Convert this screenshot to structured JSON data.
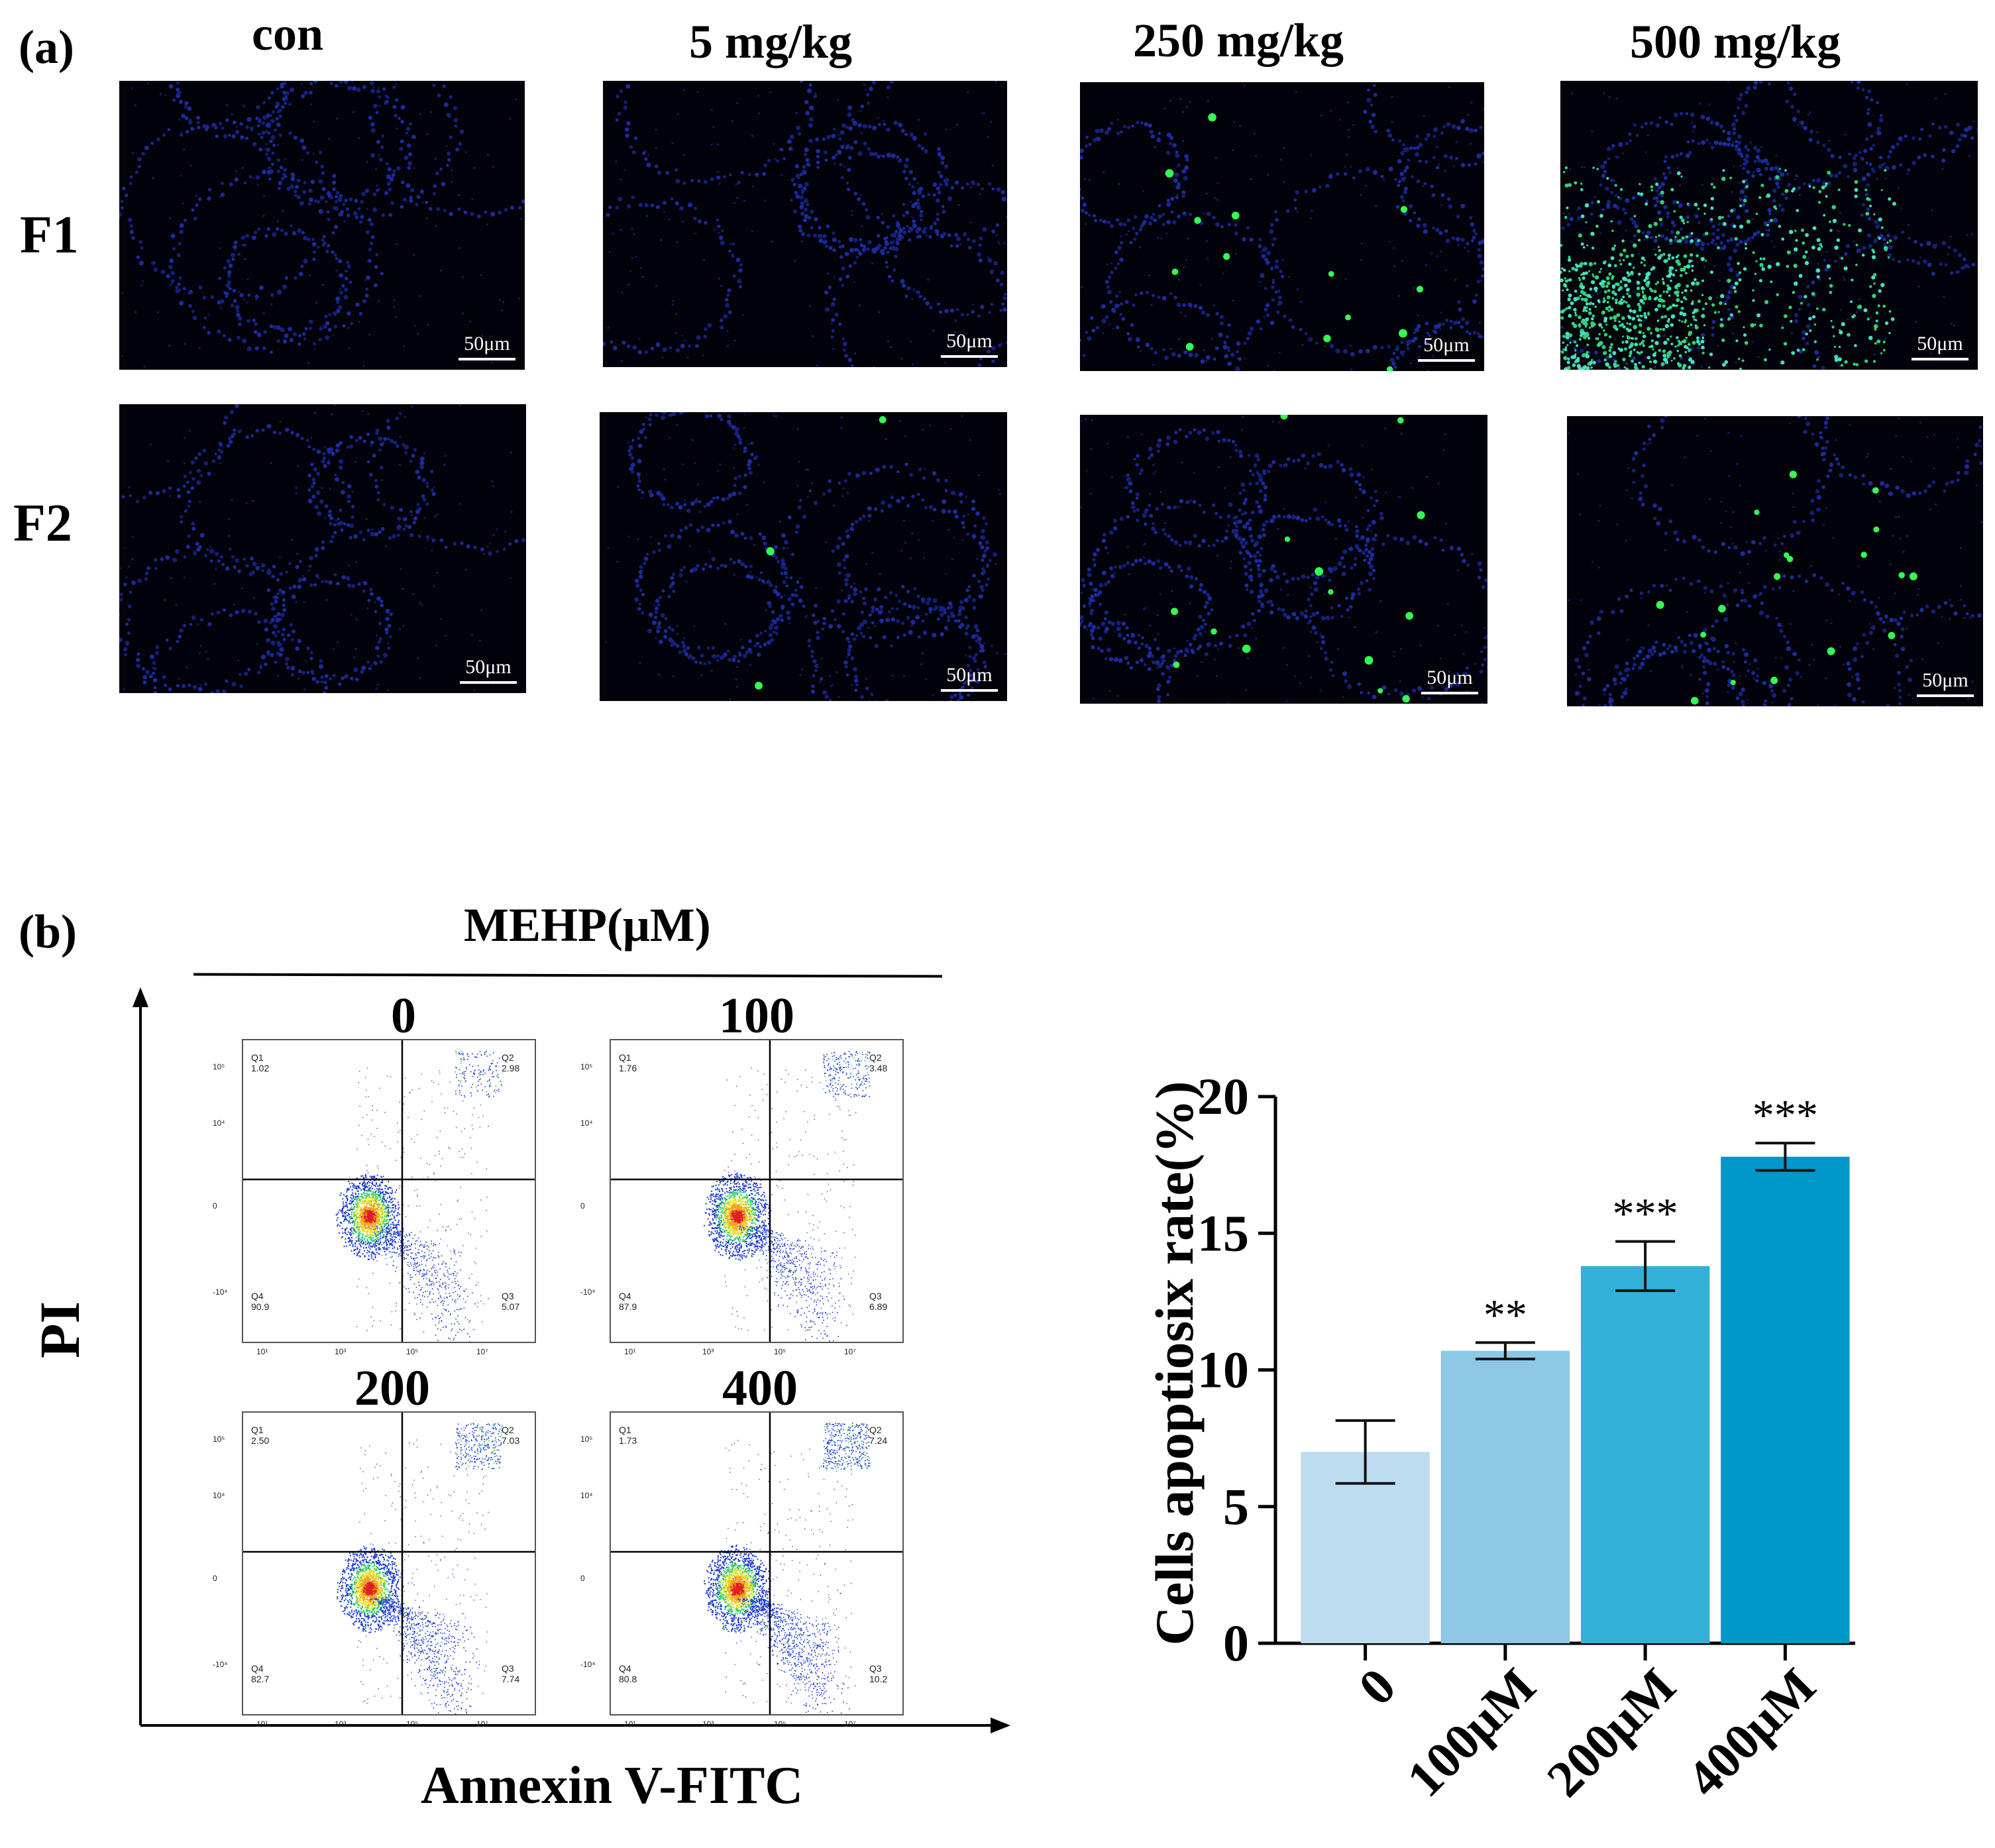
{
  "panel_a": {
    "label": "(a)",
    "column_headers": [
      "con",
      "5 mg/kg",
      "250 mg/kg",
      "500 mg/kg"
    ],
    "row_labels": [
      "F1",
      "F2"
    ],
    "scale_bar": "50μm"
  },
  "panel_b": {
    "label": "(b)",
    "treatment_title": "MEHP(μM)",
    "y_axis_label": "PI",
    "x_axis_label": "Annexin V-FITC",
    "plots": [
      {
        "title": "0",
        "q1": "1.02",
        "q2": "2.98",
        "q3": "5.07",
        "q4": "90.9"
      },
      {
        "title": "100",
        "q1": "1.76",
        "q2": "3.48",
        "q3": "6.89",
        "q4": "87.9"
      },
      {
        "title": "200",
        "q1": "2.50",
        "q2": "7.03",
        "q3": "7.74",
        "q4": "82.7"
      },
      {
        "title": "400",
        "q1": "1.73",
        "q2": "7.24",
        "q3": "10.2",
        "q4": "80.8"
      }
    ],
    "quadrant_names": {
      "q1": "Q1",
      "q2": "Q2",
      "q3": "Q3",
      "q4": "Q4"
    },
    "y_ticks": [
      "10⁵",
      "10⁴",
      "0",
      "-10⁴"
    ],
    "x_ticks": [
      "10¹",
      "10³",
      "10⁵",
      "10⁷"
    ]
  },
  "chart_data": {
    "type": "bar",
    "categories": [
      "0",
      "100μM",
      "200μM",
      "400μM"
    ],
    "values": [
      7.0,
      10.7,
      13.8,
      17.8
    ],
    "errors": [
      1.15,
      0.3,
      0.9,
      0.5
    ],
    "significance": [
      "",
      "**",
      "***",
      "***"
    ],
    "ylabel": "Cells apoptiosix rate(%)",
    "ylim": [
      0,
      20
    ],
    "yticks": [
      0,
      5,
      10,
      15,
      20
    ],
    "bar_colors": [
      "#bddcf0",
      "#8cc8e4",
      "#33b0d8",
      "#0097c9"
    ],
    "grid": false
  }
}
